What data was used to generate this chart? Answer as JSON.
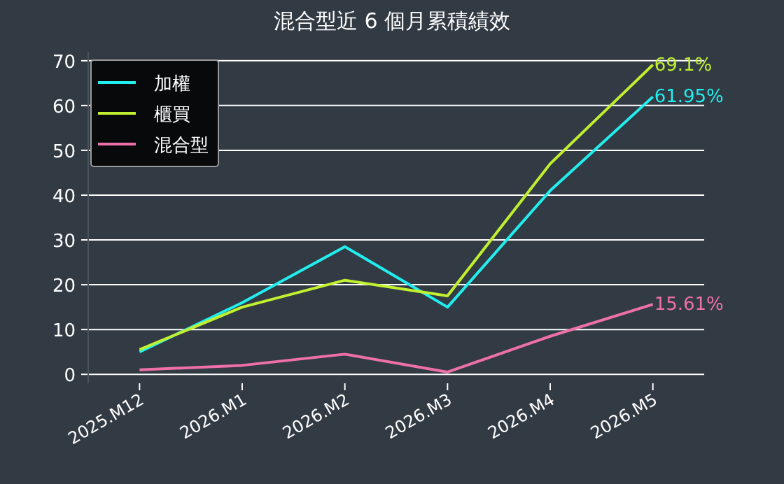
{
  "chart_data": {
    "type": "line",
    "title": "混合型近 6 個月累積績效",
    "categories": [
      "2025.M12",
      "2026.M1",
      "2026.M2",
      "2026.M3",
      "2026.M4",
      "2026.M5"
    ],
    "series": [
      {
        "name": "加權",
        "color": "#22eeee",
        "values": [
          5,
          16,
          28.5,
          15,
          41,
          61.95
        ],
        "value_labels": [
          null,
          null,
          null,
          null,
          null,
          "61.95%"
        ]
      },
      {
        "name": "櫃買",
        "color": "#c0f030",
        "values": [
          5.5,
          15,
          21,
          17.5,
          47,
          69.1
        ],
        "value_labels": [
          null,
          null,
          null,
          null,
          null,
          "69.1%"
        ]
      },
      {
        "name": "混合型",
        "color": "#ee70a8",
        "values": [
          1,
          2,
          4.5,
          0.5,
          8.5,
          15.61
        ],
        "value_labels": [
          null,
          null,
          null,
          null,
          null,
          "15.61%"
        ]
      }
    ],
    "ylim": [
      -2,
      72
    ],
    "yticks": [
      0,
      10,
      20,
      30,
      40,
      50,
      60,
      70
    ],
    "grid": "y",
    "legend": "top left",
    "marker": "none",
    "line_style": "solid"
  }
}
